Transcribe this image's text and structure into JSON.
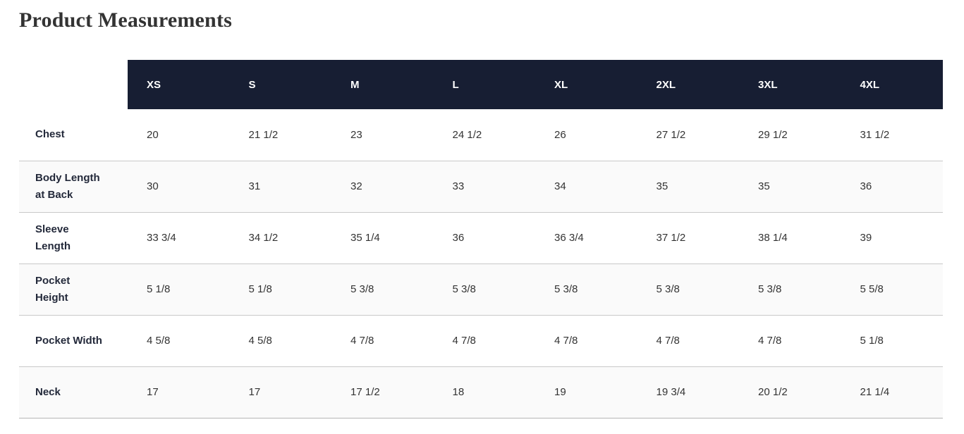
{
  "page": {
    "title": "Product Measurements"
  },
  "colors": {
    "header_bg": "#171e33",
    "header_text": "#ffffff",
    "stripe_bg": "#fafafa",
    "row_border": "#c9c9c9",
    "title_text": "#333333",
    "label_text": "#23293a",
    "cell_text": "#333333"
  },
  "table": {
    "sizes": [
      "XS",
      "S",
      "M",
      "L",
      "XL",
      "2XL",
      "3XL",
      "4XL"
    ],
    "rows": [
      {
        "label": "Chest",
        "values": [
          "20",
          "21 1/2",
          "23",
          "24 1/2",
          "26",
          "27 1/2",
          "29 1/2",
          "31 1/2"
        ]
      },
      {
        "label": "Body Length at Back",
        "values": [
          "30",
          "31",
          "32",
          "33",
          "34",
          "35",
          "35",
          "36"
        ]
      },
      {
        "label": "Sleeve Length",
        "values": [
          "33 3/4",
          "34 1/2",
          "35 1/4",
          "36",
          "36 3/4",
          "37 1/2",
          "38 1/4",
          "39"
        ]
      },
      {
        "label": "Pocket Height",
        "values": [
          "5 1/8",
          "5 1/8",
          "5 3/8",
          "5 3/8",
          "5 3/8",
          "5 3/8",
          "5 3/8",
          "5 5/8"
        ]
      },
      {
        "label": "Pocket Width",
        "values": [
          "4 5/8",
          "4 5/8",
          "4 7/8",
          "4 7/8",
          "4 7/8",
          "4 7/8",
          "4 7/8",
          "5 1/8"
        ]
      },
      {
        "label": "Neck",
        "values": [
          "17",
          "17",
          "17 1/2",
          "18",
          "19",
          "19 3/4",
          "20 1/2",
          "21 1/4"
        ]
      }
    ]
  },
  "chart_data": {
    "type": "table",
    "title": "Product Measurements",
    "columns": [
      "XS",
      "S",
      "M",
      "L",
      "XL",
      "2XL",
      "3XL",
      "4XL"
    ],
    "row_labels": [
      "Chest",
      "Body Length at Back",
      "Sleeve Length",
      "Pocket Height",
      "Pocket Width",
      "Neck"
    ],
    "cells": [
      [
        "20",
        "21 1/2",
        "23",
        "24 1/2",
        "26",
        "27 1/2",
        "29 1/2",
        "31 1/2"
      ],
      [
        "30",
        "31",
        "32",
        "33",
        "34",
        "35",
        "35",
        "36"
      ],
      [
        "33 3/4",
        "34 1/2",
        "35 1/4",
        "36",
        "36 3/4",
        "37 1/2",
        "38 1/4",
        "39"
      ],
      [
        "5 1/8",
        "5 1/8",
        "5 3/8",
        "5 3/8",
        "5 3/8",
        "5 3/8",
        "5 3/8",
        "5 5/8"
      ],
      [
        "4 5/8",
        "4 5/8",
        "4 7/8",
        "4 7/8",
        "4 7/8",
        "4 7/8",
        "4 7/8",
        "5 1/8"
      ],
      [
        "17",
        "17",
        "17 1/2",
        "18",
        "19",
        "19 3/4",
        "20 1/2",
        "21 1/4"
      ]
    ]
  }
}
